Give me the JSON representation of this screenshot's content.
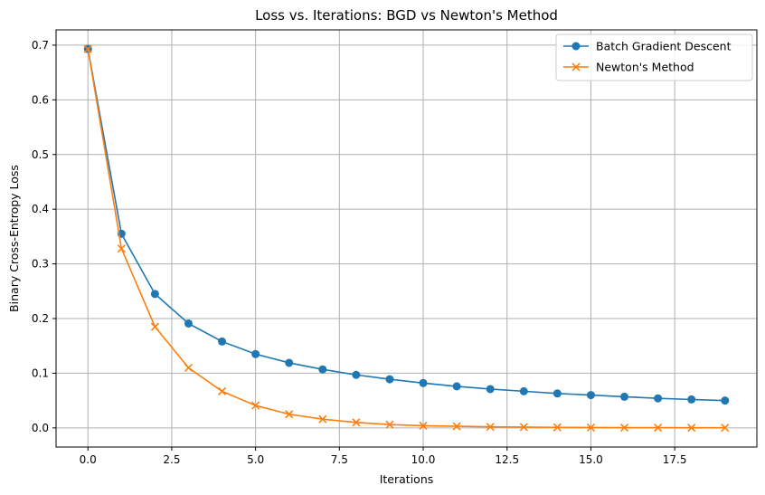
{
  "chart_data": {
    "type": "line",
    "title": "Loss vs. Iterations: BGD vs Newton's Method",
    "xlabel": "Iterations",
    "ylabel": "Binary Cross-Entropy Loss",
    "xlim": [
      -0.95,
      19.95
    ],
    "ylim": [
      -0.035,
      0.728
    ],
    "xticks": [
      0.0,
      2.5,
      5.0,
      7.5,
      10.0,
      12.5,
      15.0,
      17.5
    ],
    "xtick_labels": [
      "0.0",
      "2.5",
      "5.0",
      "7.5",
      "10.0",
      "12.5",
      "15.0",
      "17.5"
    ],
    "yticks": [
      0.0,
      0.1,
      0.2,
      0.3,
      0.4,
      0.5,
      0.6,
      0.7
    ],
    "ytick_labels": [
      "0.0",
      "0.1",
      "0.2",
      "0.3",
      "0.4",
      "0.5",
      "0.6",
      "0.7"
    ],
    "grid": true,
    "legend_position": "top-right",
    "x": [
      0,
      1,
      2,
      3,
      4,
      5,
      6,
      7,
      8,
      9,
      10,
      11,
      12,
      13,
      14,
      15,
      16,
      17,
      18,
      19
    ],
    "series": [
      {
        "name": "Batch Gradient Descent",
        "color": "#1f77b4",
        "marker": "circle",
        "values": [
          0.693,
          0.355,
          0.245,
          0.191,
          0.158,
          0.135,
          0.119,
          0.107,
          0.097,
          0.089,
          0.082,
          0.076,
          0.071,
          0.067,
          0.063,
          0.06,
          0.057,
          0.054,
          0.052,
          0.05
        ]
      },
      {
        "name": "Newton's Method",
        "color": "#ff7f0e",
        "marker": "x",
        "values": [
          0.693,
          0.328,
          0.185,
          0.11,
          0.067,
          0.041,
          0.025,
          0.016,
          0.01,
          0.006,
          0.004,
          0.003,
          0.002,
          0.0015,
          0.001,
          0.0007,
          0.0005,
          0.0004,
          0.0003,
          0.0002
        ]
      }
    ]
  }
}
